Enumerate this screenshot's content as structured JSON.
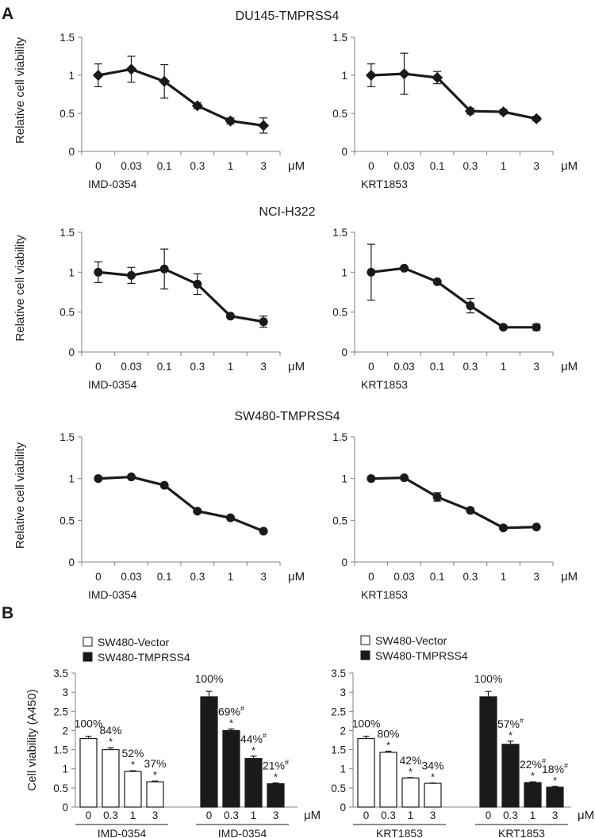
{
  "panel_labels": [
    "A",
    "B"
  ],
  "chart_data": [
    {
      "type": "line",
      "group_title": "DU145-TMPRSS4",
      "marker": "diamond",
      "ylabel": "Relative cell viability",
      "xlabel": "IMD-0354",
      "unit": "μM",
      "categories": [
        "0",
        "0.03",
        "0.1",
        "0.3",
        "1",
        "3"
      ],
      "values": [
        1.0,
        1.08,
        0.92,
        0.6,
        0.4,
        0.34
      ],
      "errors": [
        0.15,
        0.17,
        0.22,
        0.04,
        0.04,
        0.1
      ],
      "ylim": [
        0,
        1.5
      ],
      "yticks": [
        "0",
        "0.5",
        "1",
        "1.5"
      ]
    },
    {
      "type": "line",
      "group_title": "",
      "marker": "diamond",
      "ylabel": "",
      "xlabel": "KRT1853",
      "unit": "μM",
      "categories": [
        "0",
        "0.03",
        "0.1",
        "0.3",
        "1",
        "3"
      ],
      "values": [
        1.0,
        1.02,
        0.97,
        0.53,
        0.52,
        0.43
      ],
      "errors": [
        0.15,
        0.27,
        0.08,
        0.04,
        0.03,
        0.03
      ],
      "ylim": [
        0,
        1.5
      ],
      "yticks": [
        "0",
        "0.5",
        "1",
        "1.5"
      ]
    },
    {
      "type": "line",
      "group_title": "NCI-H322",
      "marker": "circle",
      "ylabel": "Relative cell viability",
      "xlabel": "IMD-0354",
      "unit": "μM",
      "categories": [
        "0",
        "0.03",
        "0.1",
        "0.3",
        "1",
        "3"
      ],
      "values": [
        1.0,
        0.96,
        1.04,
        0.85,
        0.45,
        0.38
      ],
      "errors": [
        0.13,
        0.1,
        0.25,
        0.13,
        0.02,
        0.07
      ],
      "ylim": [
        0,
        1.5
      ],
      "yticks": [
        "0",
        "0.5",
        "1",
        "1.5"
      ]
    },
    {
      "type": "line",
      "group_title": "",
      "marker": "circle",
      "ylabel": "",
      "xlabel": "KRT1853",
      "unit": "μM",
      "categories": [
        "0",
        "0.03",
        "0.1",
        "0.3",
        "1",
        "3"
      ],
      "values": [
        1.0,
        1.05,
        0.88,
        0.58,
        0.31,
        0.31
      ],
      "errors": [
        0.35,
        0.02,
        0.02,
        0.09,
        0.02,
        0.04
      ],
      "ylim": [
        0,
        1.5
      ],
      "yticks": [
        "0",
        "0.5",
        "1",
        "1.5"
      ]
    },
    {
      "type": "line",
      "group_title": "SW480-TMPRSS4",
      "marker": "circle",
      "ylabel": "Relative cell viability",
      "xlabel": "IMD-0354",
      "unit": "μM",
      "categories": [
        "0",
        "0.03",
        "0.1",
        "0.3",
        "1",
        "3"
      ],
      "values": [
        1.0,
        1.02,
        0.92,
        0.61,
        0.53,
        0.37
      ],
      "errors": [
        0.02,
        0.02,
        0.02,
        0.02,
        0.02,
        0.02
      ],
      "ylim": [
        0,
        1.5
      ],
      "yticks": [
        "0",
        "0.5",
        "1",
        "1.5"
      ]
    },
    {
      "type": "line",
      "group_title": "",
      "marker": "circle",
      "ylabel": "",
      "xlabel": "KRT1853",
      "unit": "μM",
      "categories": [
        "0",
        "0.03",
        "0.1",
        "0.3",
        "1",
        "3"
      ],
      "values": [
        1.0,
        1.01,
        0.78,
        0.62,
        0.41,
        0.42
      ],
      "errors": [
        0.02,
        0.02,
        0.05,
        0.02,
        0.02,
        0.02
      ],
      "ylim": [
        0,
        1.5
      ],
      "yticks": [
        "0",
        "0.5",
        "1",
        "1.5"
      ]
    },
    {
      "type": "bar",
      "ylabel": "Cell viability (A450)",
      "unit": "μM",
      "ylim": [
        0,
        3.5
      ],
      "yticks": [
        "0",
        "0.5",
        "1",
        "1.5",
        "2",
        "2.5",
        "3",
        "3.5"
      ],
      "legend": [
        {
          "name": "SW480-Vector",
          "color": "#ffffff"
        },
        {
          "name": "SW480-TMPRSS4",
          "color": "#1a1a1a"
        }
      ],
      "groups": [
        {
          "drug": "IMD-0354",
          "series": "SW480-Vector",
          "fill": "#ffffff",
          "categories": [
            "0",
            "0.3",
            "1",
            "3"
          ],
          "values": [
            1.79,
            1.5,
            0.93,
            0.66
          ],
          "errors": [
            0.06,
            0.05,
            0.02,
            0.02
          ],
          "labels": [
            "100%",
            "84%",
            "52%",
            "37%"
          ],
          "stars": [
            "",
            "*",
            "*",
            "*"
          ],
          "sup": [
            "",
            "",
            "",
            ""
          ]
        },
        {
          "drug": "IMD-0354",
          "series": "SW480-TMPRSS4",
          "fill": "#1a1a1a",
          "categories": [
            "0",
            "0.3",
            "1",
            "3"
          ],
          "values": [
            2.88,
            2.0,
            1.27,
            0.61
          ],
          "errors": [
            0.14,
            0.04,
            0.06,
            0.02
          ],
          "labels": [
            "100%",
            "69%",
            "44%",
            "21%"
          ],
          "stars": [
            "",
            "*",
            "*",
            "*"
          ],
          "sup": [
            "",
            "#",
            "#",
            "#"
          ]
        },
        {
          "drug": "KRT1853",
          "series": "SW480-Vector",
          "fill": "#ffffff",
          "categories": [
            "0",
            "0.3",
            "1",
            "3"
          ],
          "values": [
            1.79,
            1.43,
            0.76,
            0.62
          ],
          "errors": [
            0.06,
            0.03,
            0.01,
            0.01
          ],
          "labels": [
            "100%",
            "80%",
            "42%",
            "34%"
          ],
          "stars": [
            "",
            "*",
            "*",
            "*"
          ],
          "sup": [
            "",
            "",
            "",
            ""
          ]
        },
        {
          "drug": "KRT1853",
          "series": "SW480-TMPRSS4",
          "fill": "#1a1a1a",
          "categories": [
            "0",
            "0.3",
            "1",
            "3"
          ],
          "values": [
            2.88,
            1.64,
            0.64,
            0.52
          ],
          "errors": [
            0.14,
            0.08,
            0.02,
            0.02
          ],
          "labels": [
            "100%",
            "57%",
            "22%",
            "18%"
          ],
          "stars": [
            "",
            "*",
            "*",
            "*"
          ],
          "sup": [
            "",
            "#",
            "#",
            "#"
          ]
        }
      ]
    }
  ]
}
